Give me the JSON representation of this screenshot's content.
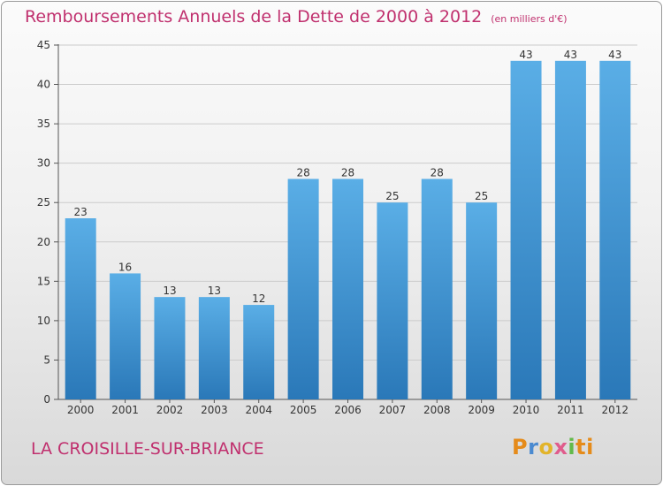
{
  "header": {
    "title": "Remboursements Annuels de la Dette de 2000 à 2012",
    "unit_note": "(en milliers d'€)"
  },
  "footer": {
    "commune": "LA CROISILLE-SUR-BRIANCE",
    "brand": "Proxiti"
  },
  "chart_data": {
    "type": "bar",
    "title": "Remboursements Annuels de la Dette de 2000 à 2012",
    "subtitle": "(en milliers d'€)",
    "xlabel": "",
    "ylabel": "",
    "categories": [
      "2000",
      "2001",
      "2002",
      "2003",
      "2004",
      "2005",
      "2006",
      "2007",
      "2008",
      "2009",
      "2010",
      "2011",
      "2012"
    ],
    "values": [
      23,
      16,
      13,
      13,
      12,
      28,
      28,
      25,
      28,
      25,
      43,
      43,
      43
    ],
    "ylim": [
      0,
      45
    ],
    "yticks": [
      0,
      5,
      10,
      15,
      20,
      25,
      30,
      35,
      40,
      45
    ],
    "grid": true,
    "data_labels": true,
    "bar_color_top": "#5aaee6",
    "bar_color_bottom": "#2a78b8",
    "grid_color": "#cccccc"
  }
}
